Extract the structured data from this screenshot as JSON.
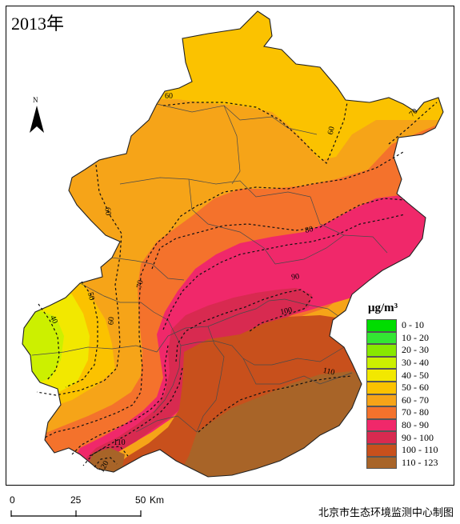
{
  "title": "2013年",
  "north_label": "N",
  "legend": {
    "unit": "μg/m³",
    "classes": [
      {
        "label": "0 - 10",
        "color": "#00dd00"
      },
      {
        "label": "10 - 20",
        "color": "#33e633"
      },
      {
        "label": "20 - 30",
        "color": "#88e800"
      },
      {
        "label": "30 - 40",
        "color": "#ccf000"
      },
      {
        "label": "40 - 50",
        "color": "#f2e800"
      },
      {
        "label": "50 - 60",
        "color": "#fbc200"
      },
      {
        "label": "60 - 70",
        "color": "#f6a418"
      },
      {
        "label": "70 - 80",
        "color": "#f4722c"
      },
      {
        "label": "80 - 90",
        "color": "#f0286a"
      },
      {
        "label": "90 - 100",
        "color": "#d82a50"
      },
      {
        "label": "100 - 110",
        "color": "#c8501c"
      },
      {
        "label": "110 - 123",
        "color": "#a86428"
      }
    ]
  },
  "contour_labels": [
    "60",
    "60",
    "70",
    "60",
    "80",
    "90",
    "100",
    "110",
    "110",
    "120",
    "70",
    "60",
    "50",
    "40"
  ],
  "scale_bar": {
    "ticks": [
      "0",
      "25",
      "50"
    ],
    "unit": "Km"
  },
  "credit": "北京市生态环境监测中心制图"
}
